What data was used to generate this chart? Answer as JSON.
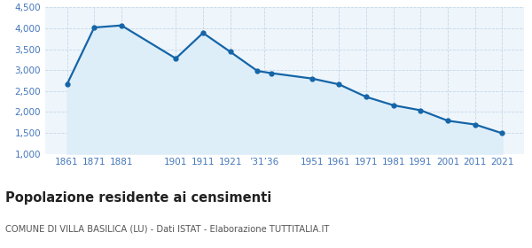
{
  "years": [
    1861,
    1871,
    1881,
    1901,
    1911,
    1921,
    1931,
    1936,
    1951,
    1961,
    1971,
    1981,
    1991,
    2001,
    2011,
    2021
  ],
  "population": [
    2660,
    4020,
    4070,
    3280,
    3890,
    3440,
    2980,
    2930,
    2800,
    2660,
    2360,
    2160,
    2040,
    1790,
    1700,
    1490
  ],
  "line_color": "#1565a8",
  "fill_color": "#ddeef8",
  "marker_color": "#1565a8",
  "bg_color": "#eef5fb",
  "grid_color": "#c5d8e8",
  "title": "Popolazione residente ai censimenti",
  "subtitle": "COMUNE DI VILLA BASILICA (LU) - Dati ISTAT - Elaborazione TUTTITALIA.IT",
  "ylim": [
    1000,
    4500
  ],
  "yticks": [
    1000,
    1500,
    2000,
    2500,
    3000,
    3500,
    4000,
    4500
  ],
  "title_fontsize": 10.5,
  "subtitle_fontsize": 7.2,
  "axis_label_color": "#4477bb",
  "tick_color": "#4477bb"
}
